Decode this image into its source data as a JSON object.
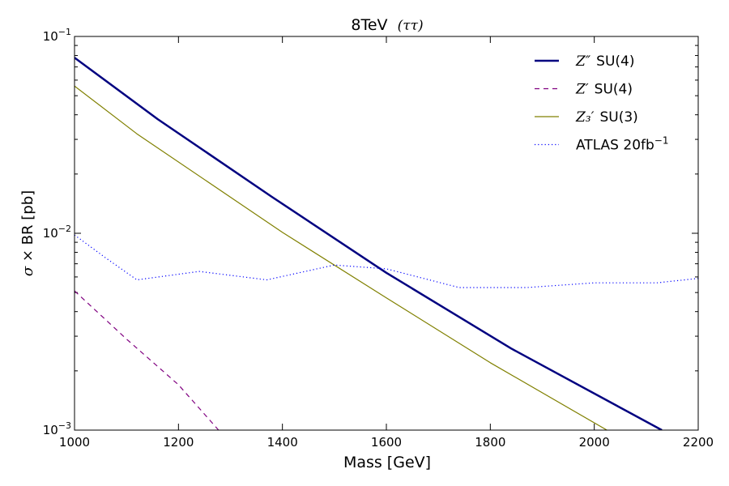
{
  "chart_data": {
    "type": "line",
    "title": "8TeV",
    "title_math": "(ττ)",
    "xlabel": "Mass [GeV]",
    "ylabel_math": "σ × ",
    "ylabel": "BR [pb]",
    "xlim": [
      1000,
      2200
    ],
    "ylim": [
      0.001,
      0.1
    ],
    "yscale": "log",
    "x_ticks": [
      1000,
      1200,
      1400,
      1600,
      1800,
      2000,
      2200
    ],
    "x_tick_labels": [
      "1000",
      "1200",
      "1400",
      "1600",
      "1800",
      "2000",
      "2200"
    ],
    "y_ticks": [
      {
        "value": 0.001,
        "base": "10",
        "exp": "−3"
      },
      {
        "value": 0.01,
        "base": "10",
        "exp": "−2"
      },
      {
        "value": 0.1,
        "base": "10",
        "exp": "−1"
      }
    ],
    "legend_position": "top-right",
    "series": [
      {
        "name": "Z'' SU(4)",
        "legend_math": "Z″",
        "legend_text": "SU(4)",
        "color": "#000080",
        "style": "solid",
        "weight": "thick",
        "x": [
          1000,
          1160,
          1380,
          1600,
          1840,
          2130
        ],
        "y": [
          0.078,
          0.038,
          0.0153,
          0.0063,
          0.0026,
          0.001
        ]
      },
      {
        "name": "Z' SU(4)",
        "legend_math": "Z′",
        "legend_text": "SU(4)",
        "color": "#800080",
        "style": "dashed",
        "weight": "normal",
        "x": [
          1000,
          1100,
          1200,
          1280
        ],
        "y": [
          0.0051,
          0.0029,
          0.0017,
          0.00098
        ]
      },
      {
        "name": "Z3' SU(3)",
        "legend_math": "Z₃′",
        "legend_text": "SU(3)",
        "color": "#808000",
        "style": "solid",
        "weight": "normal",
        "x": [
          1000,
          1120,
          1400,
          1600,
          1800,
          2030
        ],
        "y": [
          0.056,
          0.032,
          0.0101,
          0.0047,
          0.0022,
          0.00098
        ]
      },
      {
        "name": "ATLAS 20fb^-1",
        "legend_math": "",
        "legend_text": "ATLAS 20fb",
        "legend_sup": "−1",
        "color": "#0000ff",
        "style": "dotted",
        "weight": "normal",
        "x": [
          1000,
          1060,
          1120,
          1240,
          1370,
          1500,
          1600,
          1740,
          1870,
          2000,
          2120,
          2200
        ],
        "y": [
          0.0098,
          0.0075,
          0.0058,
          0.0064,
          0.0058,
          0.0069,
          0.0066,
          0.0053,
          0.0053,
          0.0056,
          0.0056,
          0.0059
        ]
      }
    ]
  }
}
